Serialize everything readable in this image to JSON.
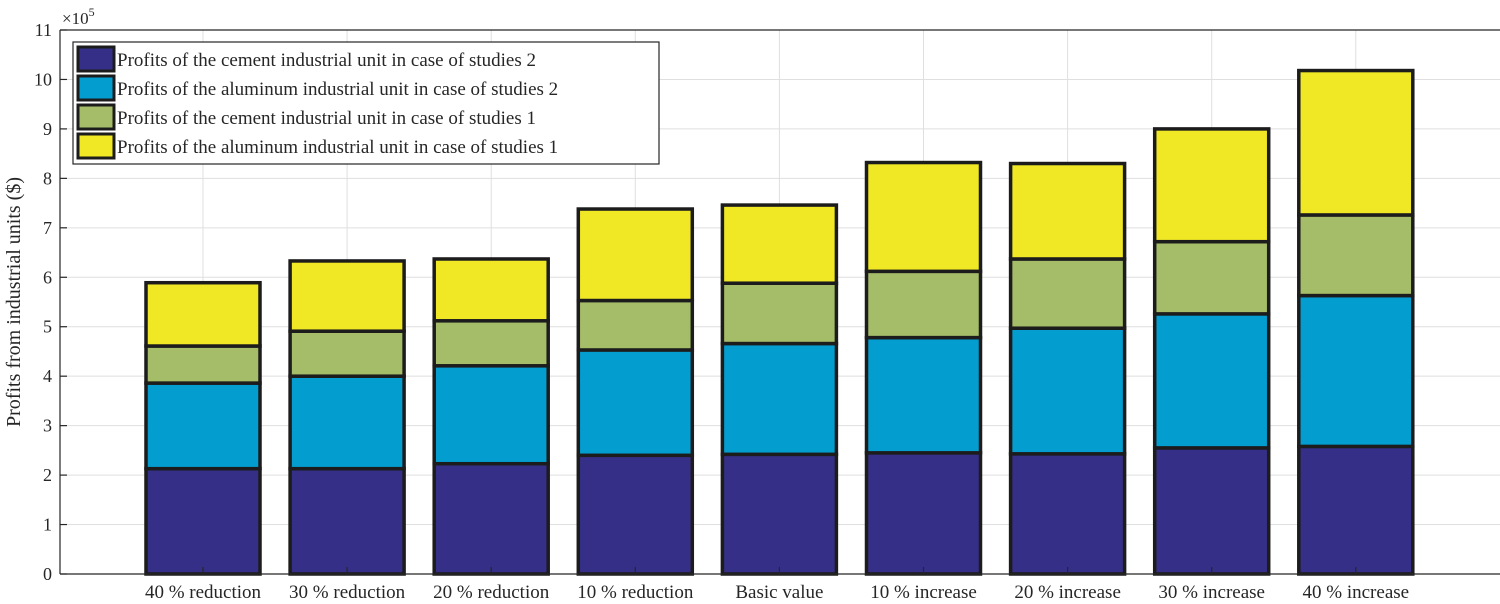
{
  "chart_data": {
    "type": "bar",
    "stacked": true,
    "title": "",
    "xlabel": "",
    "ylabel": "Profits from industrial units ($)",
    "exponent_label": "×10",
    "exponent_power": "5",
    "ylim": [
      0,
      11
    ],
    "yticks": [
      "0",
      "1",
      "2",
      "3",
      "4",
      "5",
      "6",
      "7",
      "8",
      "9",
      "10",
      "11"
    ],
    "grid": true,
    "legend_position": "top-left",
    "categories": [
      "40 % reduction",
      "30 % reduction",
      "20 % reduction",
      "10 % reduction",
      "Basic value",
      "10 % increase",
      "20 % increase",
      "30 % increase",
      "40 % increase"
    ],
    "series": [
      {
        "name": "Profits of the cement industrial unit in case of studies 2",
        "color": "#352f87",
        "values": [
          2.13,
          2.13,
          2.23,
          2.4,
          2.42,
          2.45,
          2.43,
          2.55,
          2.58
        ]
      },
      {
        "name": "Profits of the aluminum industrial unit in case of studies 2",
        "color": "#049dd0",
        "values": [
          1.73,
          1.87,
          1.98,
          2.13,
          2.24,
          2.33,
          2.54,
          2.71,
          3.05
        ]
      },
      {
        "name": "Profits of the cement industrial unit in case of studies 1",
        "color": "#a5bd68",
        "values": [
          0.75,
          0.91,
          0.91,
          1.0,
          1.22,
          1.34,
          1.4,
          1.46,
          1.63
        ]
      },
      {
        "name": "Profits of the aluminum industrial unit in case of studies 1",
        "color": "#f0e825",
        "values": [
          1.28,
          1.42,
          1.25,
          1.85,
          1.58,
          2.2,
          1.93,
          2.28,
          2.92
        ]
      }
    ]
  }
}
